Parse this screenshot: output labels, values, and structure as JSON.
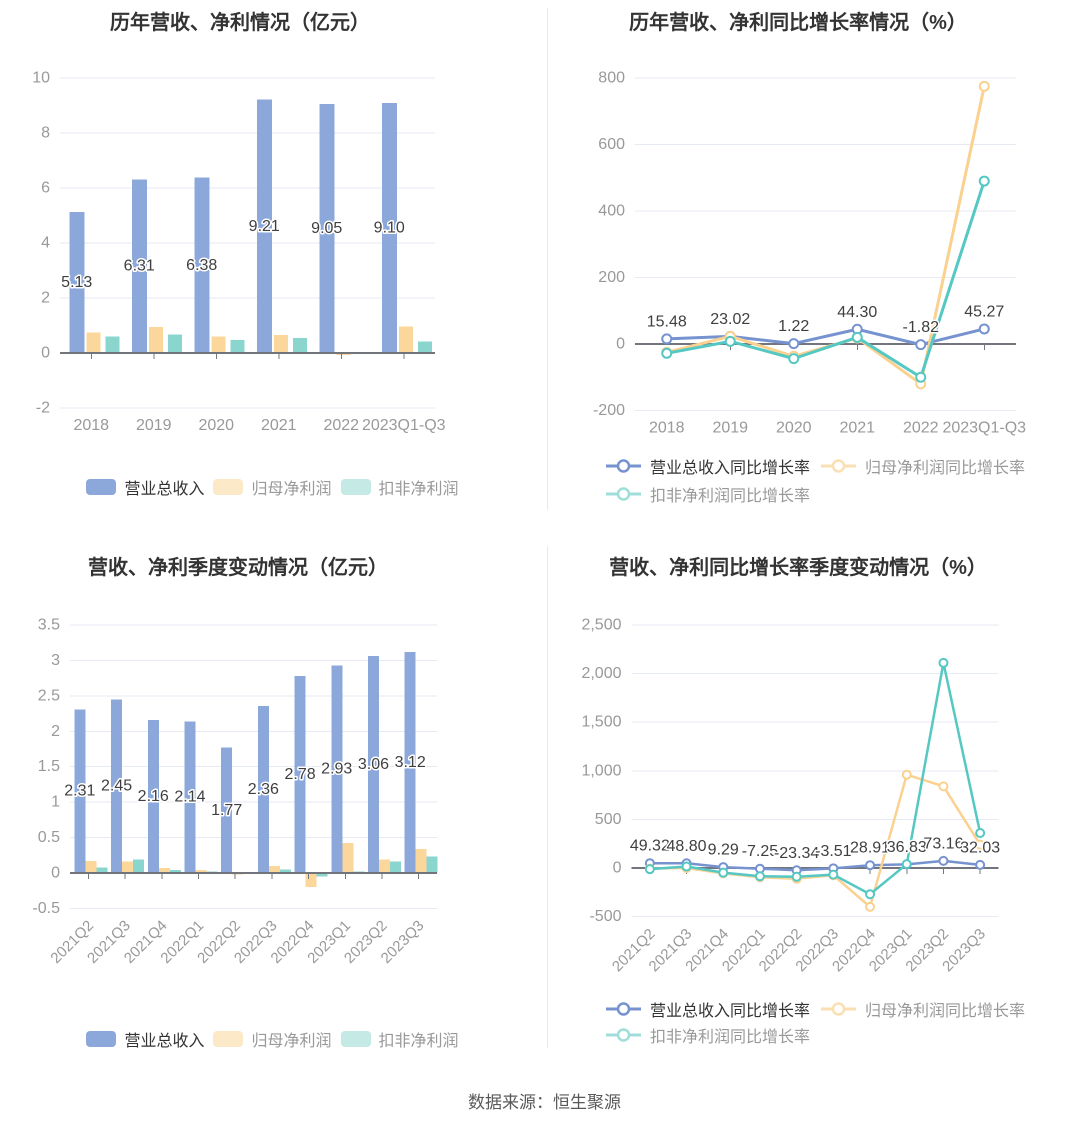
{
  "page": {
    "footer": "数据来源：恒生聚源"
  },
  "colors": {
    "revenue_bar": "#8CA8DB",
    "profit_bar": "#FCD79B",
    "nongaap_bar": "#8BD5CF",
    "revenue_line": "#7693D0",
    "profit_line": "#FAD18F",
    "nongaap_line": "#55C8C3",
    "profit_swatch": "#FCE9C8",
    "nongaap_swatch": "#C5EAE6",
    "profit_marker": "#FADFB2",
    "nongaap_marker": "#9FDEDA",
    "grid_line": "#E6EAF5",
    "zero_line": "#73757D",
    "tick_label": "#999999",
    "value_label": "#3F3F3F",
    "title": "#333333"
  },
  "chart_data": [
    {
      "id": "annual-values",
      "type": "bar",
      "title": "历年营收、净利情况（亿元）",
      "categories": [
        "2018",
        "2019",
        "2020",
        "2021",
        "2022",
        "2023Q1-Q3"
      ],
      "series": [
        {
          "name": "营业总收入",
          "values": [
            5.13,
            6.31,
            6.38,
            9.21,
            9.05,
            9.1
          ],
          "labels": [
            "5.13",
            "6.31",
            "6.38",
            "9.21",
            "9.05",
            "9.10"
          ]
        },
        {
          "name": "归母净利润",
          "values": [
            0.75,
            0.95,
            0.6,
            0.66,
            -0.08,
            0.96
          ]
        },
        {
          "name": "扣非净利润",
          "values": [
            0.6,
            0.68,
            0.47,
            0.55,
            0.03,
            0.41
          ]
        }
      ],
      "ylim": [
        -2,
        10
      ],
      "ytick_step": 2,
      "grid": true,
      "legend_position": "bottom-center"
    },
    {
      "id": "annual-growth",
      "type": "line",
      "title": "历年营收、净利同比增长率情况（%）",
      "categories": [
        "2018",
        "2019",
        "2020",
        "2021",
        "2022",
        "2023Q1-Q3"
      ],
      "series": [
        {
          "name": "营业总收入同比增长率",
          "values": [
            15.48,
            23.02,
            1.22,
            44.3,
            -1.82,
            45.27
          ],
          "labels": [
            "15.48",
            "23.02",
            "1.22",
            "44.30",
            "-1.82",
            "45.27"
          ]
        },
        {
          "name": "归母净利润同比增长率",
          "values": [
            -25,
            23,
            -37,
            18,
            -120,
            775
          ]
        },
        {
          "name": "扣非净利润同比增长率",
          "values": [
            -28,
            8,
            -44,
            20,
            -100,
            490
          ]
        }
      ],
      "ylim": [
        -200,
        800
      ],
      "ytick_step": 200,
      "grid": true,
      "legend_position": "bottom-left"
    },
    {
      "id": "quarterly-values",
      "type": "bar",
      "title": "营收、净利季度变动情况（亿元）",
      "categories": [
        "2021Q2",
        "2021Q3",
        "2021Q4",
        "2022Q1",
        "2022Q2",
        "2022Q3",
        "2022Q4",
        "2023Q1",
        "2023Q2",
        "2023Q3"
      ],
      "series": [
        {
          "name": "营业总收入",
          "values": [
            2.31,
            2.45,
            2.16,
            2.14,
            1.77,
            2.36,
            2.78,
            2.93,
            3.06,
            3.12
          ],
          "labels": [
            "2.31",
            "2.45",
            "2.16",
            "2.14",
            "1.77",
            "2.36",
            "2.78",
            "2.93",
            "3.06",
            "3.12"
          ]
        },
        {
          "name": "归母净利润",
          "values": [
            0.17,
            0.16,
            0.07,
            0.04,
            -0.02,
            0.1,
            -0.2,
            0.42,
            0.19,
            0.34
          ]
        },
        {
          "name": "扣非净利润",
          "values": [
            0.08,
            0.19,
            0.04,
            0.02,
            0.01,
            0.05,
            -0.05,
            0.02,
            0.16,
            0.23
          ]
        }
      ],
      "ylim": [
        -0.5,
        3.5
      ],
      "ytick_step": 0.5,
      "x_label_rotate": 45,
      "grid": true,
      "legend_position": "bottom-center"
    },
    {
      "id": "quarterly-growth",
      "type": "line",
      "title": "营收、净利同比增长率季度变动情况（%）",
      "categories": [
        "2021Q2",
        "2021Q3",
        "2021Q4",
        "2022Q1",
        "2022Q2",
        "2022Q3",
        "2022Q4",
        "2023Q1",
        "2023Q2",
        "2023Q3"
      ],
      "series": [
        {
          "name": "营业总收入同比增长率",
          "values": [
            49.32,
            48.8,
            9.29,
            -7.25,
            -23.34,
            -3.51,
            28.91,
            36.83,
            73.16,
            32.03
          ],
          "labels": [
            "49.32",
            "48.80",
            "9.29",
            "-7.25",
            "-23.34",
            "-3.51",
            "28.91",
            "36.83",
            "73.16",
            "32.03"
          ]
        },
        {
          "name": "归母净利润同比增长率",
          "values": [
            -7,
            0,
            -55,
            -95,
            -110,
            -75,
            -400,
            960,
            840,
            240
          ]
        },
        {
          "name": "扣非净利润同比增长率",
          "values": [
            -12,
            15,
            -48,
            -85,
            -90,
            -68,
            -270,
            40,
            2110,
            360
          ]
        }
      ],
      "ylim": [
        -500,
        2500
      ],
      "ytick_step": 500,
      "ytick_format": "thousands",
      "x_label_rotate": 45,
      "grid": true,
      "legend_position": "bottom-left"
    }
  ]
}
